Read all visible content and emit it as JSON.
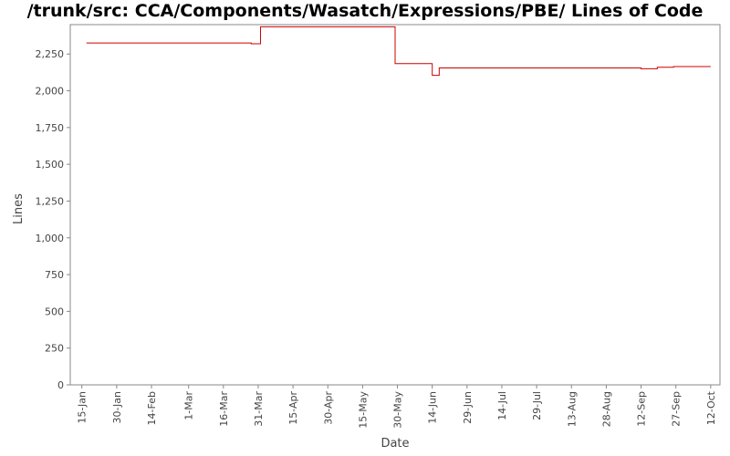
{
  "chart_data": {
    "type": "line",
    "title": "/trunk/src: CCA/Components/Wasatch/Expressions/PBE/ Lines of Code",
    "xlabel": "Date",
    "ylabel": "Lines",
    "ylim": [
      0,
      2450
    ],
    "xlim": [
      "2012-01-10",
      "2012-10-16"
    ],
    "yticks": [
      0,
      250,
      500,
      750,
      1000,
      1250,
      1500,
      1750,
      2000,
      2250
    ],
    "ytick_labels": [
      "0",
      "250",
      "500",
      "750",
      "1,000",
      "1,250",
      "1,500",
      "1,750",
      "2,000",
      "2,250"
    ],
    "xticks": [
      "2012-01-15",
      "2012-01-30",
      "2012-02-14",
      "2012-03-01",
      "2012-03-16",
      "2012-03-31",
      "2012-04-15",
      "2012-04-30",
      "2012-05-15",
      "2012-05-30",
      "2012-06-14",
      "2012-06-29",
      "2012-07-14",
      "2012-07-29",
      "2012-08-13",
      "2012-08-28",
      "2012-09-12",
      "2012-09-27",
      "2012-10-12"
    ],
    "xtick_labels": [
      "15-Jan",
      "30-Jan",
      "14-Feb",
      "1-Mar",
      "16-Mar",
      "31-Mar",
      "15-Apr",
      "30-Apr",
      "15-May",
      "30-May",
      "14-Jun",
      "29-Jun",
      "14-Jul",
      "29-Jul",
      "13-Aug",
      "28-Aug",
      "12-Sep",
      "27-Sep",
      "12-Oct"
    ],
    "grid": false,
    "legend": "none",
    "line_color": "#cc0000",
    "step": true,
    "series": [
      {
        "x": [
          "2012-01-17",
          "2012-03-28",
          "2012-04-01",
          "2012-05-29",
          "2012-06-14",
          "2012-06-17",
          "2012-09-12",
          "2012-09-19",
          "2012-09-26",
          "2012-10-12"
        ],
        "values": [
          2325,
          2320,
          2435,
          2185,
          2105,
          2155,
          2150,
          2160,
          2165,
          2165
        ]
      }
    ]
  }
}
